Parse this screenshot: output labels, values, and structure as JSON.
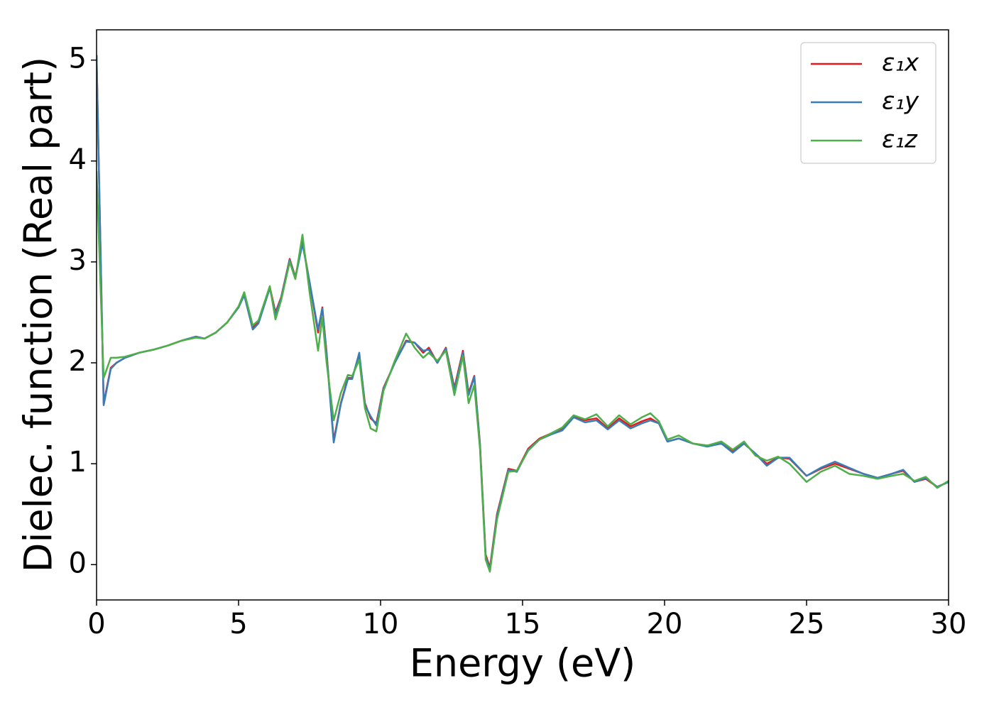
{
  "chart_data": {
    "type": "line",
    "xlabel": "Energy (eV)",
    "ylabel": "Dielec. function (Real part)",
    "x": [
      0,
      0.25,
      0.5,
      0.7,
      1,
      1.5,
      2,
      2.5,
      3,
      3.5,
      3.8,
      4.2,
      4.6,
      5,
      5.2,
      5.5,
      5.7,
      6.1,
      6.3,
      6.5,
      6.8,
      7,
      7.25,
      7.5,
      7.8,
      7.95,
      8.1,
      8.35,
      8.6,
      8.85,
      9,
      9.25,
      9.45,
      9.65,
      9.85,
      10.1,
      10.5,
      10.9,
      11.2,
      11.5,
      11.7,
      12,
      12.3,
      12.6,
      12.9,
      13.1,
      13.3,
      13.5,
      13.7,
      13.85,
      14.1,
      14.5,
      14.8,
      15.2,
      15.6,
      16,
      16.4,
      16.8,
      17.2,
      17.6,
      18,
      18.4,
      18.8,
      19.2,
      19.5,
      19.8,
      20.1,
      20.5,
      21,
      21.5,
      22,
      22.4,
      22.8,
      23.2,
      23.6,
      24,
      24.4,
      25,
      25.5,
      26,
      26.5,
      27,
      27.5,
      28,
      28.4,
      28.8,
      29.2,
      29.6,
      30
    ],
    "series": [
      {
        "name": "ε₁x",
        "color": "#e41a1c",
        "values": [
          5.05,
          1.6,
          1.95,
          2.0,
          2.05,
          2.1,
          2.13,
          2.17,
          2.22,
          2.26,
          2.24,
          2.3,
          2.4,
          2.55,
          2.68,
          2.35,
          2.4,
          2.75,
          2.5,
          2.65,
          3.03,
          2.85,
          3.2,
          2.8,
          2.3,
          2.55,
          2.1,
          1.23,
          1.6,
          1.85,
          1.85,
          2.08,
          1.6,
          1.45,
          1.4,
          1.75,
          2.0,
          2.22,
          2.2,
          2.1,
          2.15,
          2.0,
          2.15,
          1.75,
          2.12,
          1.7,
          1.87,
          1.2,
          0.1,
          -0.03,
          0.5,
          0.95,
          0.93,
          1.15,
          1.25,
          1.3,
          1.35,
          1.47,
          1.43,
          1.45,
          1.35,
          1.45,
          1.37,
          1.42,
          1.45,
          1.4,
          1.22,
          1.25,
          1.2,
          1.18,
          1.2,
          1.12,
          1.2,
          1.1,
          1.0,
          1.06,
          1.05,
          0.88,
          0.95,
          1.0,
          0.95,
          0.9,
          0.86,
          0.9,
          0.93,
          0.82,
          0.85,
          0.77,
          0.82
        ]
      },
      {
        "name": "ε₁y",
        "color": "#377eb8",
        "values": [
          5.05,
          1.58,
          1.94,
          2.0,
          2.05,
          2.1,
          2.13,
          2.17,
          2.22,
          2.26,
          2.24,
          2.3,
          2.4,
          2.55,
          2.67,
          2.33,
          2.39,
          2.74,
          2.48,
          2.64,
          3.02,
          2.84,
          3.18,
          2.8,
          2.33,
          2.54,
          2.08,
          1.21,
          1.59,
          1.84,
          1.84,
          2.1,
          1.58,
          1.47,
          1.38,
          1.74,
          2.0,
          2.21,
          2.2,
          2.12,
          2.13,
          2.0,
          2.14,
          1.73,
          2.1,
          1.68,
          1.86,
          1.18,
          0.08,
          -0.05,
          0.48,
          0.94,
          0.92,
          1.14,
          1.24,
          1.29,
          1.33,
          1.46,
          1.41,
          1.43,
          1.34,
          1.43,
          1.35,
          1.4,
          1.43,
          1.4,
          1.22,
          1.25,
          1.2,
          1.17,
          1.2,
          1.11,
          1.2,
          1.1,
          0.98,
          1.06,
          1.06,
          0.88,
          0.96,
          1.02,
          0.96,
          0.9,
          0.86,
          0.9,
          0.94,
          0.82,
          0.86,
          0.77,
          0.82
        ]
      },
      {
        "name": "ε₁z",
        "color": "#4daf4a",
        "values": [
          3.9,
          1.85,
          2.05,
          2.05,
          2.06,
          2.1,
          2.13,
          2.17,
          2.22,
          2.25,
          2.24,
          2.3,
          2.4,
          2.56,
          2.7,
          2.37,
          2.42,
          2.76,
          2.43,
          2.62,
          3.0,
          2.83,
          3.27,
          2.7,
          2.12,
          2.45,
          2.0,
          1.43,
          1.7,
          1.88,
          1.87,
          2.03,
          1.55,
          1.35,
          1.32,
          1.72,
          2.02,
          2.29,
          2.15,
          2.05,
          2.1,
          2.02,
          2.12,
          1.68,
          2.07,
          1.6,
          1.78,
          1.15,
          0.05,
          -0.07,
          0.45,
          0.92,
          0.93,
          1.13,
          1.24,
          1.3,
          1.36,
          1.48,
          1.44,
          1.49,
          1.37,
          1.48,
          1.39,
          1.46,
          1.5,
          1.42,
          1.24,
          1.28,
          1.2,
          1.18,
          1.22,
          1.14,
          1.22,
          1.08,
          1.03,
          1.07,
          1.0,
          0.82,
          0.92,
          0.98,
          0.9,
          0.88,
          0.85,
          0.88,
          0.9,
          0.83,
          0.87,
          0.76,
          0.83
        ]
      }
    ],
    "xlim": [
      0,
      30
    ],
    "xticks": [
      0,
      5,
      10,
      15,
      20,
      25,
      30
    ],
    "ylim": [
      -0.35,
      5.3
    ],
    "yticks": [
      0,
      1,
      2,
      3,
      4,
      5
    ],
    "grid": false,
    "legend": "upper right"
  }
}
